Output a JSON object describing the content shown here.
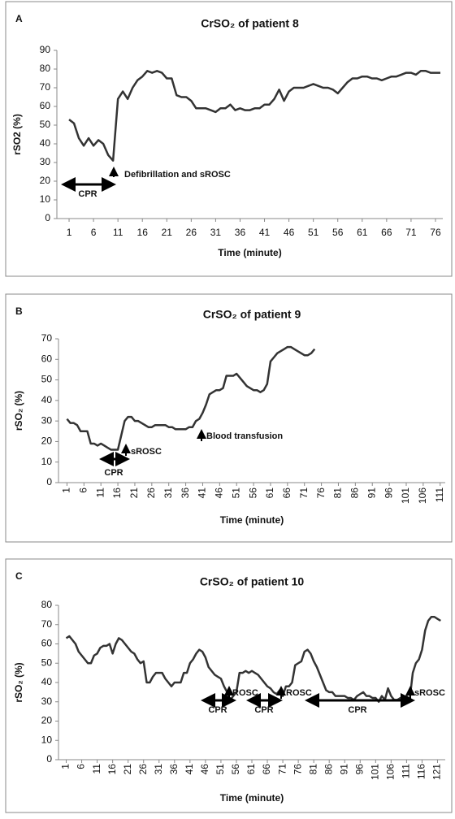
{
  "chart_data": [
    {
      "type": "line",
      "panel": "A",
      "title": "CrSO₂ of patient 8",
      "ylabel": "rSO2 (%)",
      "xlabel": "Time (minute)",
      "color": "#333333",
      "xtick_rotation": 0,
      "x": [
        1,
        2,
        3,
        4,
        5,
        6,
        7,
        8,
        9,
        10,
        11,
        12,
        13,
        14,
        15,
        16,
        17,
        18,
        19,
        20,
        21,
        22,
        23,
        24,
        25,
        26,
        27,
        28,
        29,
        30,
        31,
        32,
        33,
        34,
        35,
        36,
        37,
        38,
        39,
        40,
        41,
        42,
        43,
        44,
        45,
        46,
        47,
        48,
        49,
        50,
        51,
        52,
        53,
        54,
        55,
        56,
        57,
        58,
        59,
        60,
        61,
        62,
        63,
        64,
        65,
        66,
        67,
        68,
        69,
        70,
        71,
        72,
        73,
        74,
        75,
        76,
        77
      ],
      "values": [
        53,
        51,
        43,
        39,
        43,
        39,
        42,
        40,
        34,
        31,
        64,
        68,
        64,
        70,
        74,
        76,
        79,
        78,
        79,
        78,
        75,
        75,
        66,
        65,
        65,
        63,
        59,
        59,
        59,
        58,
        57,
        59,
        59,
        61,
        58,
        59,
        58,
        58,
        59,
        59,
        61,
        61,
        64,
        69,
        63,
        68,
        70,
        70,
        70,
        71,
        72,
        71,
        70,
        70,
        69,
        67,
        70,
        73,
        75,
        75,
        76,
        76,
        75,
        75,
        74,
        75,
        76,
        76,
        77,
        78,
        78,
        77,
        79,
        79,
        78,
        78,
        78
      ],
      "xlim": [
        -1.5,
        77.5
      ],
      "ylim": [
        0,
        90
      ],
      "xticks": [
        1,
        6,
        11,
        16,
        21,
        26,
        31,
        36,
        41,
        46,
        51,
        56,
        61,
        66,
        71,
        76
      ],
      "yticks": [
        0,
        10,
        20,
        30,
        40,
        50,
        60,
        70,
        80,
        90
      ],
      "annotations": [
        "CPR",
        "Defibrillation and sROSC"
      ]
    },
    {
      "type": "line",
      "panel": "B",
      "title": "CrSO₂ of patient 9",
      "ylabel": "rSO₂ (%)",
      "xlabel": "Time (minute)",
      "color": "#333333",
      "xtick_rotation": -90,
      "x": [
        1,
        2,
        3,
        4,
        5,
        6,
        7,
        8,
        9,
        10,
        11,
        12,
        13,
        14,
        15,
        16,
        17,
        18,
        19,
        20,
        21,
        22,
        23,
        24,
        25,
        26,
        27,
        28,
        29,
        30,
        31,
        32,
        33,
        34,
        35,
        36,
        37,
        38,
        39,
        40,
        41,
        42,
        43,
        44,
        45,
        46,
        47,
        48,
        49,
        50,
        51,
        52,
        53,
        54,
        55,
        56,
        57,
        58,
        59,
        60,
        61,
        62,
        63,
        64,
        65,
        66,
        67,
        68,
        69,
        70,
        71,
        72,
        73,
        74
      ],
      "values": [
        31,
        29,
        29,
        28,
        25,
        25,
        25,
        19,
        19,
        18,
        19,
        18,
        17,
        16,
        16,
        16,
        23,
        30,
        32,
        32,
        30,
        30,
        29,
        28,
        27,
        27,
        28,
        28,
        28,
        28,
        27,
        27,
        26,
        26,
        26,
        26,
        27,
        27,
        30,
        31,
        34,
        38,
        43,
        44,
        45,
        45,
        46,
        52,
        52,
        52,
        53,
        51,
        49,
        47,
        46,
        45,
        45,
        44,
        45,
        48,
        59,
        61,
        63,
        64,
        65,
        66,
        66,
        65,
        64,
        63,
        62,
        62,
        63,
        65
      ],
      "xlim": [
        -1.5,
        112.5
      ],
      "ylim": [
        0,
        70
      ],
      "xticks": [
        1,
        6,
        11,
        16,
        21,
        26,
        31,
        36,
        41,
        46,
        51,
        56,
        61,
        66,
        71,
        76,
        81,
        86,
        91,
        96,
        101,
        106,
        111
      ],
      "yticks": [
        0,
        10,
        20,
        30,
        40,
        50,
        60,
        70
      ],
      "annotations": [
        "CPR",
        "sROSC",
        "Blood transfusion"
      ]
    },
    {
      "type": "line",
      "panel": "C",
      "title": "CrSO₂ of patient 10",
      "ylabel": "rSO₂ (%)",
      "xlabel": "Time (minute)",
      "color": "#333333",
      "xtick_rotation": -90,
      "x": [
        1,
        2,
        3,
        4,
        5,
        6,
        7,
        8,
        9,
        10,
        11,
        12,
        13,
        14,
        15,
        16,
        17,
        18,
        19,
        20,
        21,
        22,
        23,
        24,
        25,
        26,
        27,
        28,
        29,
        30,
        31,
        32,
        33,
        34,
        35,
        36,
        37,
        38,
        39,
        40,
        41,
        42,
        43,
        44,
        45,
        46,
        47,
        48,
        49,
        50,
        51,
        52,
        53,
        54,
        55,
        56,
        57,
        58,
        59,
        60,
        61,
        62,
        63,
        64,
        65,
        66,
        67,
        68,
        69,
        70,
        71,
        72,
        73,
        74,
        75,
        76,
        77,
        78,
        79,
        80,
        81,
        82,
        83,
        84,
        85,
        86,
        87,
        88,
        89,
        90,
        91,
        92,
        93,
        94,
        95,
        96,
        97,
        98,
        99,
        100,
        101,
        102,
        103,
        104,
        105,
        106,
        107,
        108,
        109,
        110,
        111,
        112,
        113,
        114,
        115,
        116,
        117,
        118,
        119,
        120,
        121,
        122
      ],
      "values": [
        63,
        64,
        62,
        60,
        56,
        54,
        52,
        50,
        50,
        54,
        55,
        58,
        59,
        59,
        60,
        55,
        60,
        63,
        62,
        60,
        58,
        56,
        55,
        52,
        50,
        51,
        40,
        40,
        43,
        45,
        45,
        45,
        42,
        40,
        38,
        40,
        40,
        40,
        45,
        45,
        50,
        52,
        55,
        57,
        56,
        53,
        48,
        46,
        44,
        43,
        42,
        38,
        35,
        31,
        33,
        35,
        45,
        45,
        46,
        45,
        46,
        45,
        44,
        42,
        40,
        38,
        37,
        35,
        34,
        36,
        33,
        38,
        38,
        40,
        49,
        50,
        51,
        56,
        57,
        55,
        51,
        48,
        44,
        40,
        36,
        35,
        35,
        33,
        33,
        33,
        33,
        32,
        32,
        31,
        33,
        34,
        35,
        33,
        33,
        32,
        32,
        30,
        33,
        31,
        37,
        33,
        31,
        31,
        32,
        31,
        33,
        31,
        45,
        50,
        52,
        57,
        67,
        72,
        74,
        74,
        73,
        72
      ],
      "xlim": [
        -1.5,
        123.5
      ],
      "ylim": [
        0,
        80
      ],
      "xticks": [
        1,
        6,
        11,
        16,
        21,
        26,
        31,
        36,
        41,
        46,
        51,
        56,
        61,
        66,
        71,
        76,
        81,
        86,
        91,
        96,
        101,
        106,
        111,
        116,
        121
      ],
      "yticks": [
        0,
        10,
        20,
        30,
        40,
        50,
        60,
        70,
        80
      ],
      "annotations": [
        "CPR",
        "CPR",
        "CPR",
        "ROSC",
        "ROSC",
        "sROSC"
      ]
    }
  ]
}
